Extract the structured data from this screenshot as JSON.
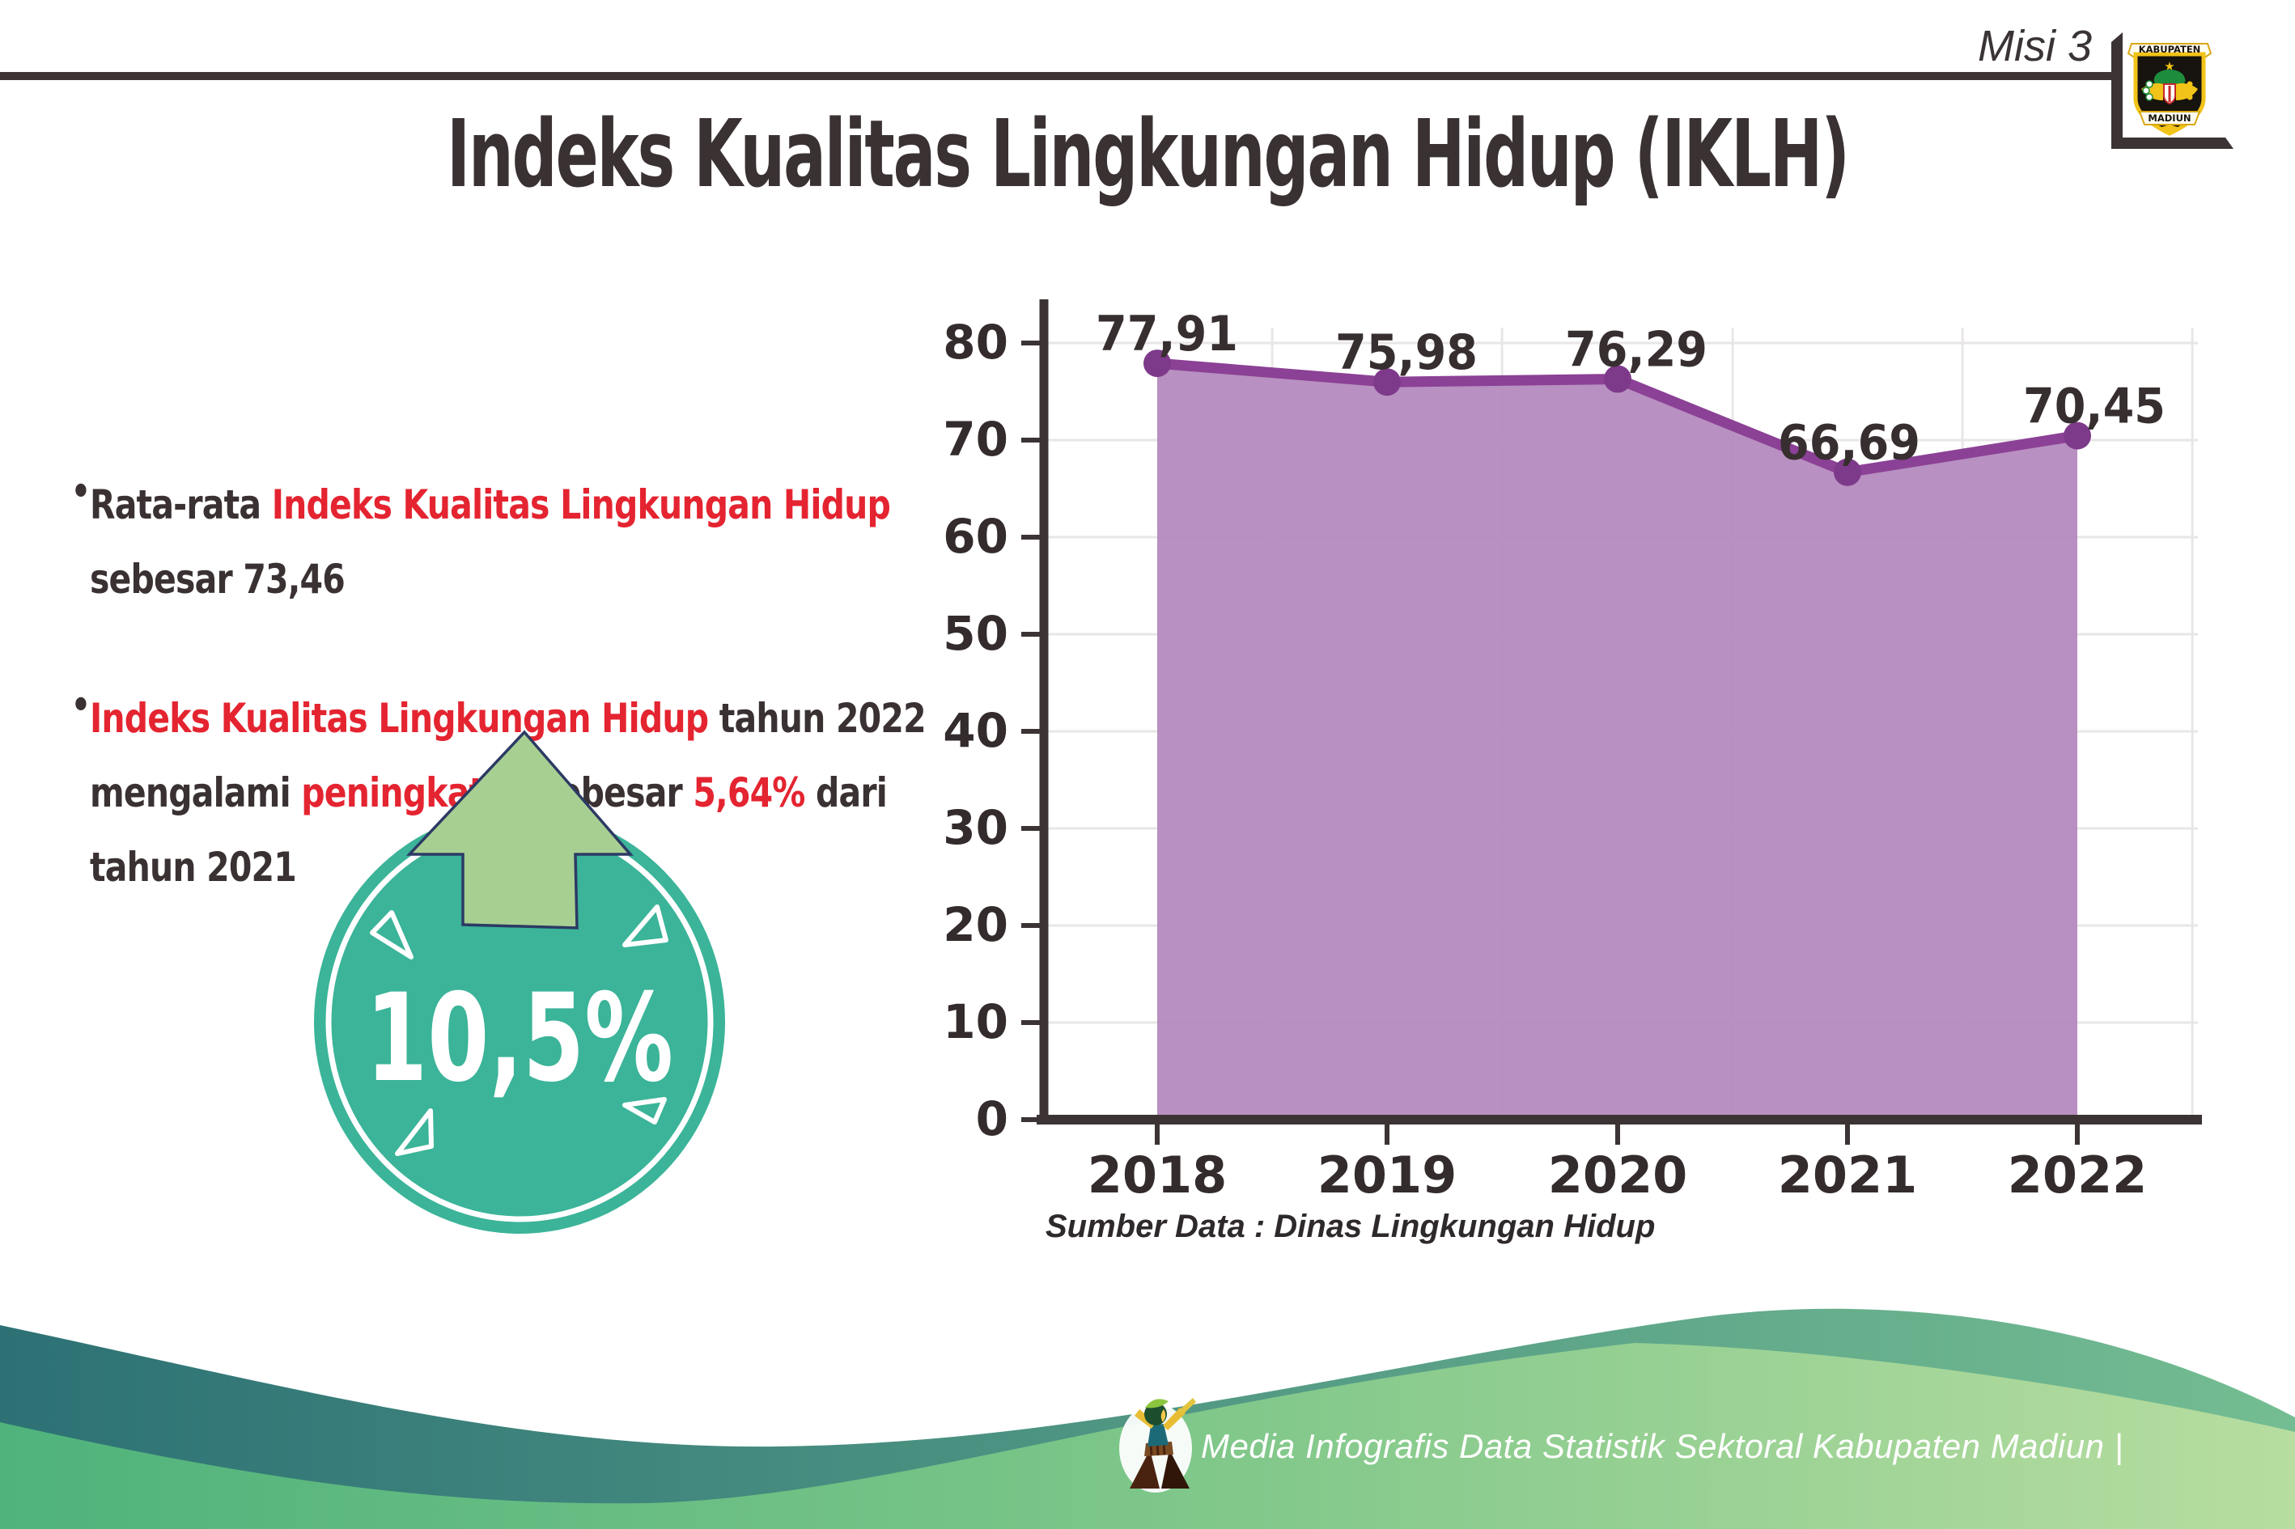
{
  "header": {
    "misi_label": "Misi 3",
    "title": "Indeks Kualitas Lingkungan Hidup (IKLH)",
    "logo": {
      "top_banner": "KABUPATEN",
      "bottom_banner": "MADIUN"
    }
  },
  "bullets": [
    {
      "lines": [
        [
          {
            "text": "Rata-rata ",
            "color": "dark"
          },
          {
            "text": "Indeks Kualitas Lingkungan Hidup",
            "color": "red"
          }
        ],
        [
          {
            "text": "sebesar 73,46",
            "color": "dark"
          }
        ]
      ]
    },
    {
      "lines": [
        [
          {
            "text": "Indeks Kualitas Lingkungan Hidup",
            "color": "red"
          },
          {
            "text": " tahun 2022",
            "color": "dark"
          }
        ],
        [
          {
            "text": "mengalami ",
            "color": "dark"
          },
          {
            "text": "peningkatan",
            "color": "red"
          },
          {
            "text": " sebesar ",
            "color": "dark"
          },
          {
            "text": "5,64%",
            "color": "red"
          },
          {
            "text": " dari",
            "color": "dark"
          }
        ],
        [
          {
            "text": "tahun 2021",
            "color": "dark"
          }
        ]
      ]
    }
  ],
  "badge": {
    "value": "10,5%",
    "circle_color": "#3bb499",
    "arrow_color": "#a8cf92",
    "arrow_outline": "#2c3a64"
  },
  "chart_data": {
    "type": "area",
    "title": "",
    "categories": [
      "2018",
      "2019",
      "2020",
      "2021",
      "2022"
    ],
    "series": [
      {
        "name": "IKLH",
        "values": [
          77.91,
          75.98,
          76.29,
          66.69,
          70.45
        ]
      }
    ],
    "value_labels": [
      "77,91",
      "75,98",
      "76,29",
      "66,69",
      "70,45"
    ],
    "xlabel": "",
    "ylabel": "",
    "ylim": [
      0,
      80
    ],
    "ytick_step": 10,
    "grid": true,
    "legend_position": "none",
    "fill_color": "#b48abe",
    "line_color": "#8b4195",
    "marker_color": "#7e3a8a",
    "source_note": "Sumber Data : Dinas Lingkungan Hidup"
  },
  "footer": {
    "credit": "Media Infografis Data Statistik Sektoral Kabupaten Madiun |",
    "wave_back_colors": [
      "#2d7175",
      "#74bd92"
    ],
    "wave_front_colors": [
      "#4fb37b",
      "#7dc689",
      "#b7dda0"
    ]
  },
  "colors": {
    "dark_text": "#3a3132",
    "red_text": "#e42430",
    "axis_color": "#3b3334",
    "gridline_color": "#e9e6e7"
  },
  "icons": {
    "badge_arrow": "up-arrow-icon",
    "corner_logo": "kabupaten-madiun-seal-icon",
    "footer_mascot": "statistics-mascot-icon"
  }
}
